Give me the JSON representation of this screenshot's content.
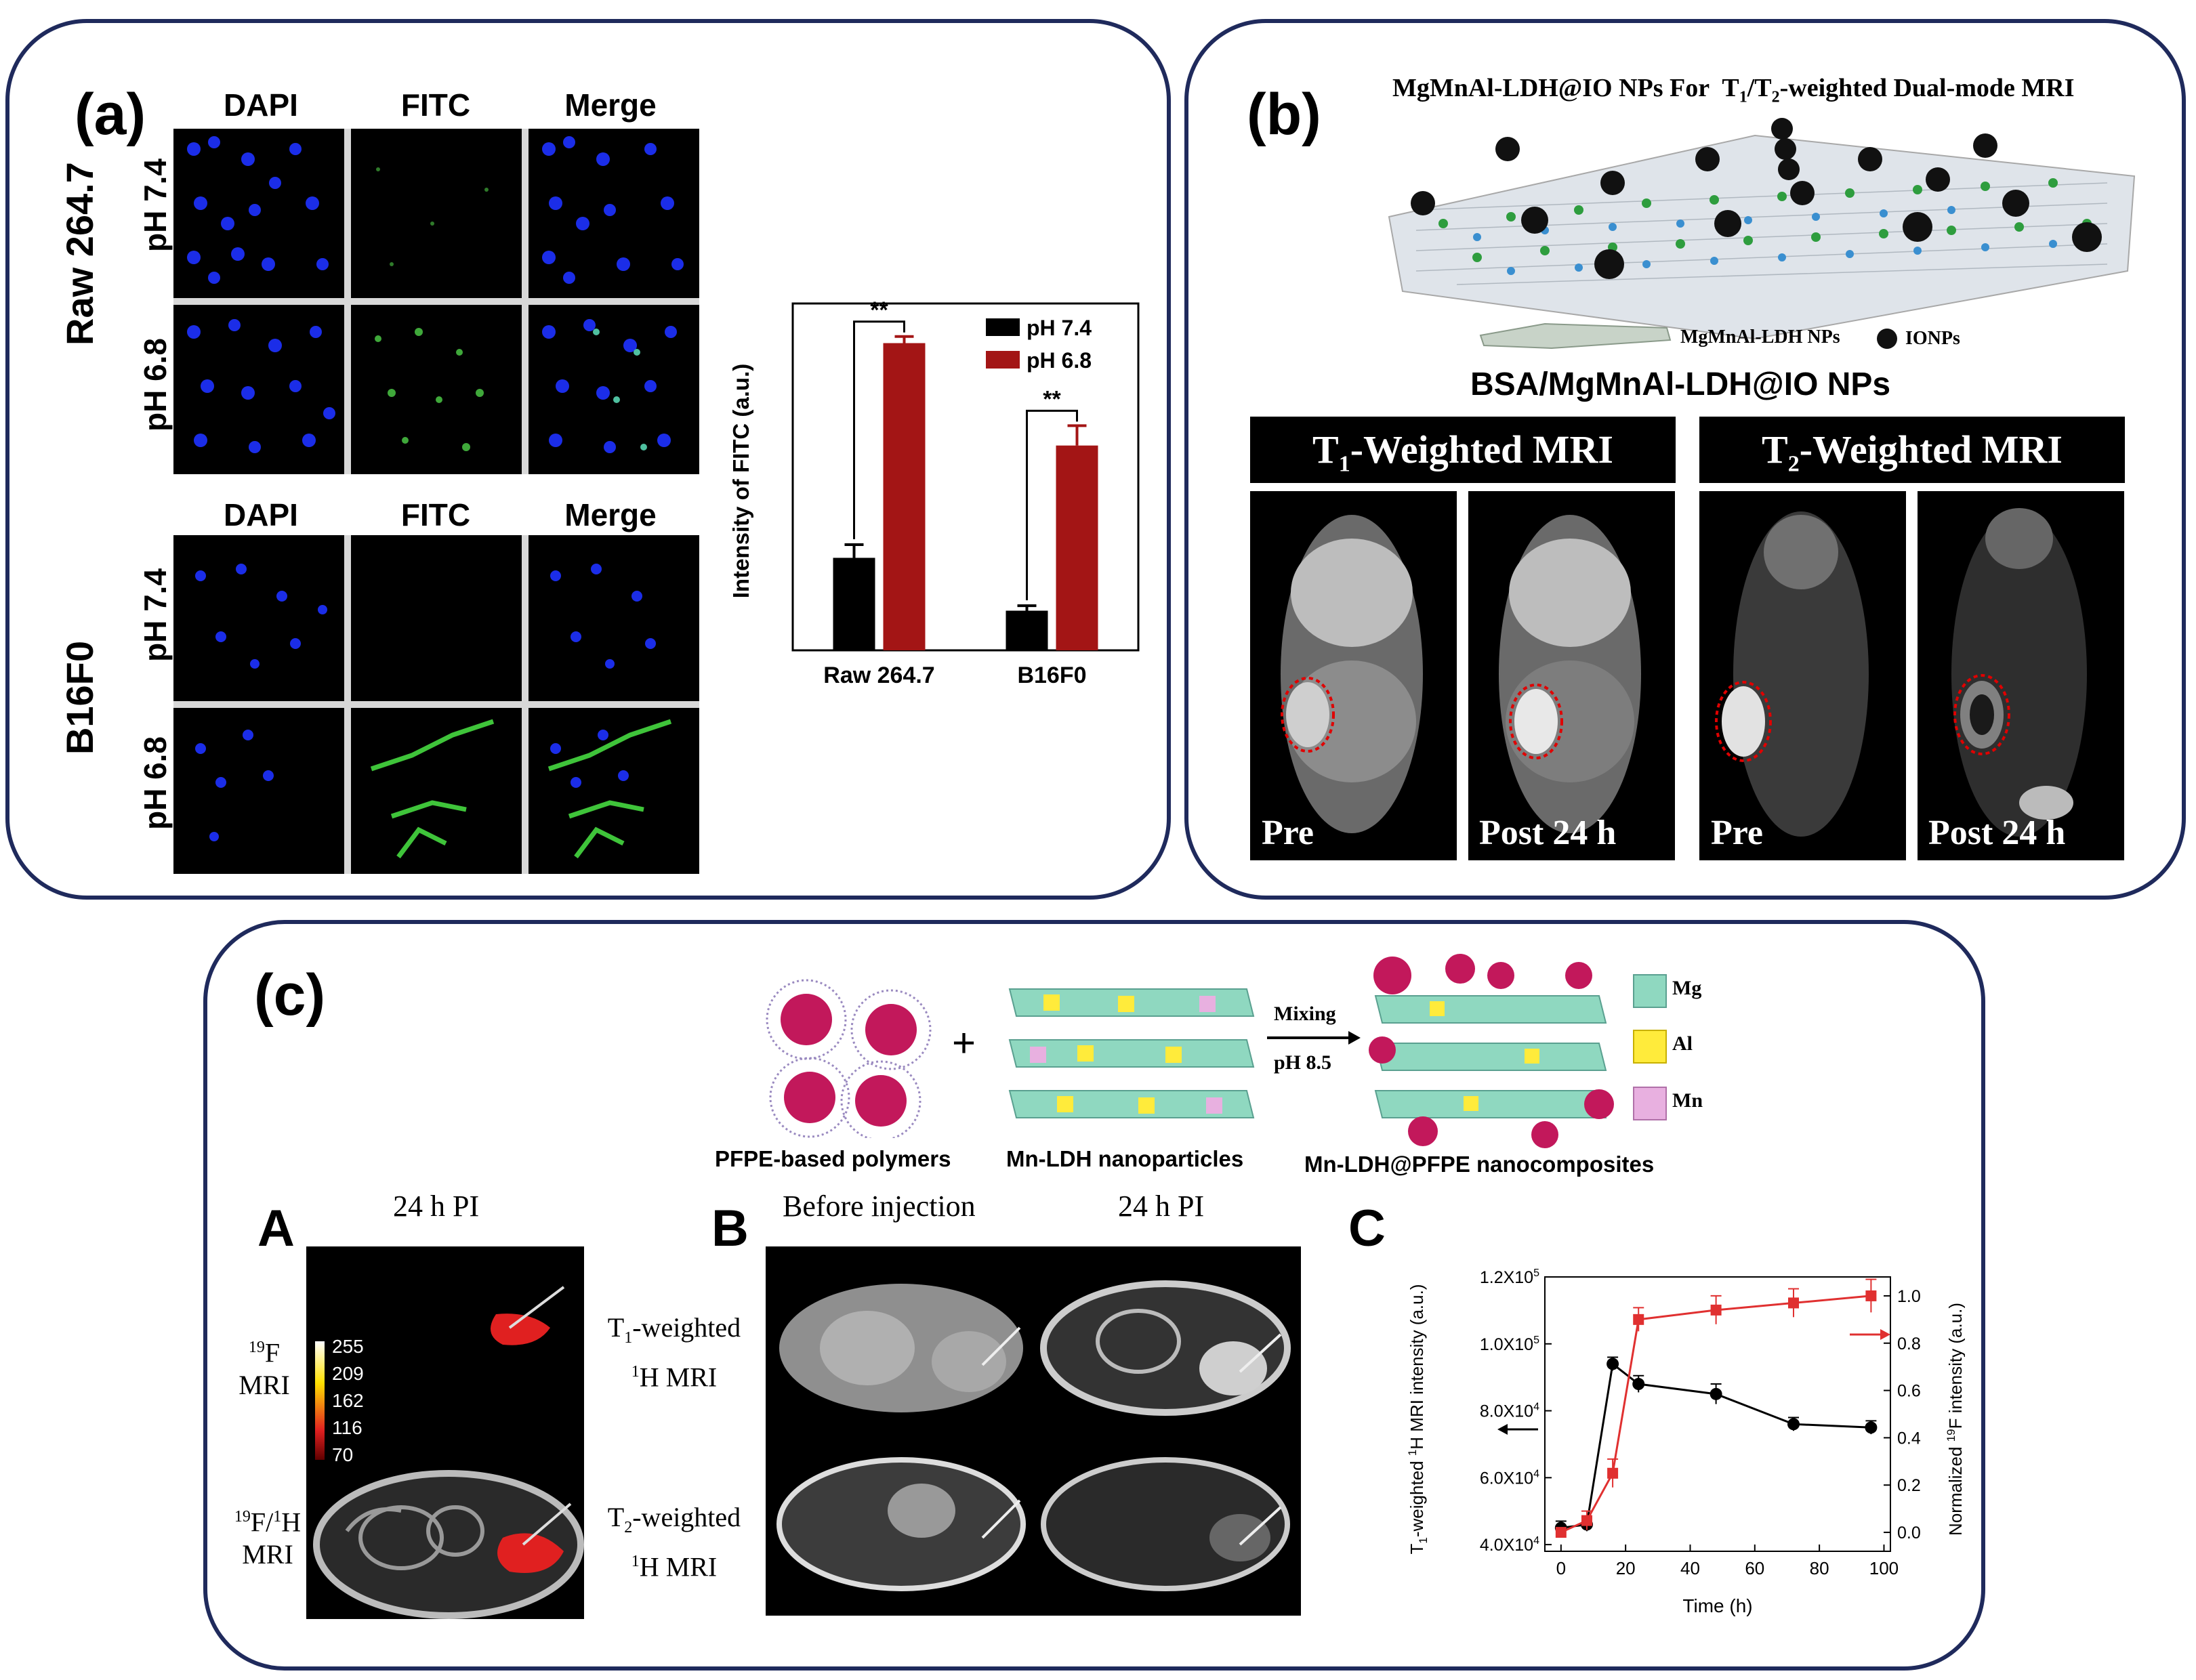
{
  "panel_a": {
    "label": "(a)",
    "group1": {
      "cell_line": "Raw 264.7",
      "cols": [
        "DAPI",
        "FITC",
        "Merge"
      ],
      "rows": [
        "pH 7.4",
        "pH 6.8"
      ]
    },
    "group2": {
      "cell_line": "B16F0",
      "cols": [
        "DAPI",
        "FITC",
        "Merge"
      ],
      "rows": [
        "pH 7.4",
        "pH 6.8"
      ]
    },
    "chart": {
      "ylabel": "Intensity of FITC (a.u.)",
      "legend": [
        "pH 7.4",
        "pH 6.8"
      ],
      "sig": "**"
    }
  },
  "panel_b": {
    "label": "(b)",
    "title": "MgMnAl-LDH@IO NPs For  T1/T2-weighted Dual-mode MRI",
    "legend_ldh": "MgMnAl-LDH NPs",
    "legend_io": "IONPs",
    "subtitle": "BSA/MgMnAl-LDH@IO NPs",
    "t1_header": "T1-Weighted MRI",
    "t2_header": "T2-Weighted MRI",
    "captions": [
      "Pre",
      "Post 24 h",
      "Pre",
      "Post 24 h"
    ]
  },
  "panel_c": {
    "label": "(c)",
    "scheme": {
      "polymers": "PFPE-based polymers",
      "plus": "+",
      "ldh": "Mn-LDH nanoparticles",
      "mixing": "Mixing",
      "ph": "pH 8.5",
      "product": "Mn-LDH@PFPE nanocomposites",
      "legend": [
        "Mg",
        "Al",
        "Mn"
      ]
    },
    "A": {
      "letter": "A",
      "title": "24 h PI",
      "row1": "19F MRI",
      "row2": "19F/1H MRI",
      "scale": [
        "255",
        "209",
        "162",
        "116",
        "70"
      ]
    },
    "B": {
      "letter": "B",
      "col1": "Before injection",
      "col2": "24 h PI",
      "row1": "T1-weighted 1H MRI",
      "row2": "T2-weighted 1H MRI"
    },
    "C": {
      "letter": "C",
      "xlabel": "Time (h)",
      "ylabel_left": "T1-weighted 1H MRI intensity (a.u.)",
      "ylabel_right": "Normalized 19F intensity (a.u.)",
      "xticks": [
        "0",
        "20",
        "40",
        "60",
        "80",
        "100"
      ],
      "yticks_left": [
        "4.0X10",
        "6.0X10",
        "8.0X10",
        "1.0X10",
        "1.2X10"
      ],
      "yticks_left_exp": [
        "4",
        "4",
        "4",
        "5",
        "5"
      ],
      "yticks_right": [
        "0.0",
        "0.2",
        "0.4",
        "0.6",
        "0.8",
        "1.0"
      ]
    }
  },
  "chart_data": [
    {
      "type": "bar",
      "categories": [
        "Raw 264.7",
        "B16F0"
      ],
      "series": [
        {
          "name": "pH 7.4",
          "values": [
            0.28,
            0.12
          ],
          "errors": [
            0.04,
            0.015
          ],
          "color": "#000000"
        },
        {
          "name": "pH 6.8",
          "values": [
            0.93,
            0.62
          ],
          "errors": [
            0.02,
            0.06
          ],
          "color": "#a31515"
        }
      ],
      "ylabel": "Intensity of FITC (a.u.)",
      "ylim": [
        0,
        1.05
      ],
      "significance": [
        {
          "category": "Raw 264.7",
          "label": "**"
        },
        {
          "category": "B16F0",
          "label": "**"
        }
      ],
      "legend_position": "top-right"
    },
    {
      "type": "line",
      "xlabel": "Time (h)",
      "xlim": [
        -5,
        102
      ],
      "series": [
        {
          "name": "T1-weighted 1H MRI intensity",
          "axis": "left",
          "color": "#000000",
          "x": [
            0,
            8,
            16,
            24,
            48,
            72,
            96
          ],
          "y": [
            45000,
            46000,
            94000,
            88000,
            85000,
            76000,
            75000
          ],
          "err": [
            2000,
            2000,
            2000,
            2500,
            3000,
            2000,
            2000
          ]
        },
        {
          "name": "Normalized 19F intensity",
          "axis": "right",
          "color": "#e03030",
          "x": [
            0,
            8,
            16,
            24,
            48,
            72,
            96
          ],
          "y": [
            0.0,
            0.05,
            0.25,
            0.9,
            0.94,
            0.97,
            1.0
          ],
          "err": [
            0.01,
            0.04,
            0.06,
            0.05,
            0.06,
            0.06,
            0.07
          ]
        }
      ],
      "ylim_left": [
        38000,
        120000
      ],
      "ylim_right": [
        -0.08,
        1.08
      ]
    }
  ]
}
